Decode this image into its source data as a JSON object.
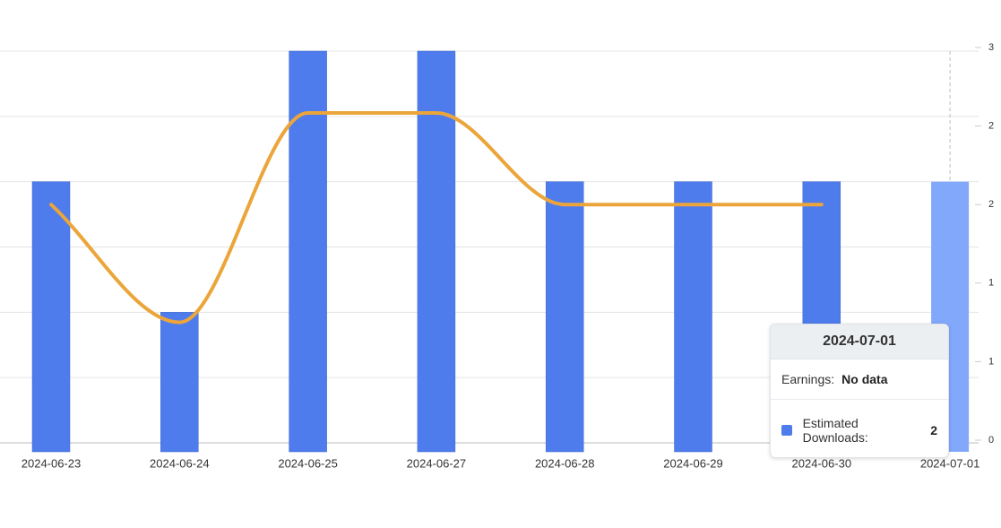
{
  "chart_data": {
    "type": "bar-line",
    "categories": [
      "2024-06-23",
      "2024-06-24",
      "2024-06-25",
      "2024-06-27",
      "2024-06-28",
      "2024-06-29",
      "2024-06-30",
      "2024-07-01"
    ],
    "series": [
      {
        "type": "bar",
        "color": "#4f7cec",
        "highlight_color": "#82a8fb",
        "values": [
          2,
          1,
          3,
          3,
          2,
          2,
          2,
          2
        ]
      },
      {
        "type": "line",
        "axis": "y2",
        "color": "#eba53a",
        "values": [
          1.8,
          0.9,
          2.5,
          2.5,
          1.8,
          1.8,
          1.8,
          null
        ]
      }
    ],
    "ylim": [
      0,
      3
    ],
    "yticks": [
      0,
      0.5,
      1,
      1.5,
      2,
      2.5,
      3
    ],
    "y2lim": [
      0,
      3
    ],
    "y2ticks": [
      {
        "value": 0,
        "label": "0"
      },
      {
        "value": 0.6,
        "label": "1"
      },
      {
        "value": 1.2,
        "label": "1"
      },
      {
        "value": 1.8,
        "label": "2"
      },
      {
        "value": 2.4,
        "label": "2"
      },
      {
        "value": 3,
        "label": "3"
      }
    ],
    "grid": true,
    "tooltip": {
      "title": "2024-07-01",
      "rows": [
        {
          "label": "Earnings:",
          "value": "No data"
        },
        {
          "label": "Estimated Downloads:",
          "value": 2
        }
      ]
    }
  }
}
